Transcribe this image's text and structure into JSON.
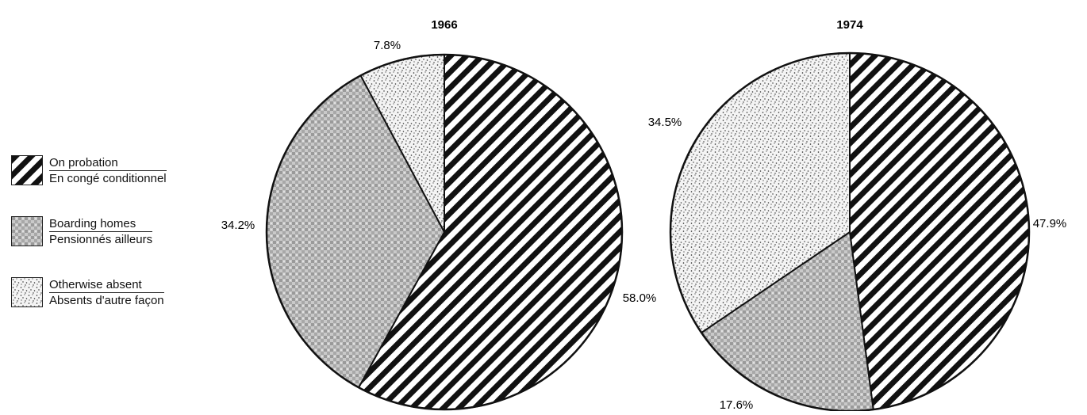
{
  "chart_data": [
    {
      "type": "pie",
      "title": "1966",
      "slices": [
        {
          "category": "probation",
          "value": 58.0,
          "label": "58.0%"
        },
        {
          "category": "boarding",
          "value": 34.2,
          "label": "34.2%"
        },
        {
          "category": "absent",
          "value": 7.8,
          "label": "7.8%"
        }
      ]
    },
    {
      "type": "pie",
      "title": "1974",
      "slices": [
        {
          "category": "probation",
          "value": 47.9,
          "label": "47.9%"
        },
        {
          "category": "boarding",
          "value": 17.6,
          "label": "17.6%"
        },
        {
          "category": "absent",
          "value": 34.5,
          "label": "34.5%"
        }
      ]
    }
  ],
  "legend": [
    {
      "key": "probation",
      "en": "On probation",
      "fr": "En congé conditionnel",
      "pattern": "diagonal-stripes"
    },
    {
      "key": "boarding",
      "en": "Boarding homes",
      "fr": "Pensionnés ailleurs",
      "pattern": "grey-checker"
    },
    {
      "key": "absent",
      "en": "Otherwise absent",
      "fr": "Absents d'autre façon",
      "pattern": "speckle-dots"
    }
  ],
  "colors": {
    "ink": "#111111",
    "grey": "#bdbdbd",
    "light": "#f2f2f2"
  }
}
